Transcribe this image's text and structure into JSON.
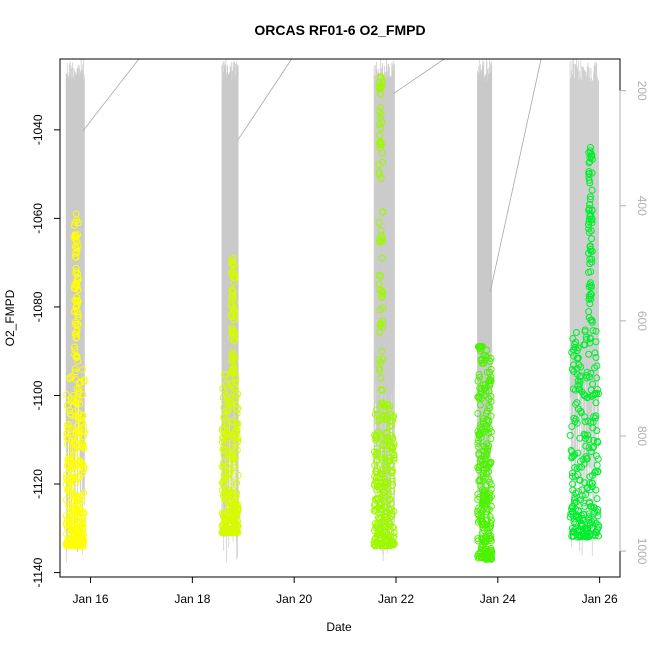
{
  "chart_data": {
    "type": "scatter",
    "title": "ORCAS RF01-6 O2_FMPD",
    "xlabel": "Date",
    "ylabel": "O2_FMPD",
    "x_ticks": [
      "Jan 16",
      "Jan 18",
      "Jan 20",
      "Jan 22",
      "Jan 24",
      "Jan 26"
    ],
    "x_tick_days": [
      16,
      18,
      20,
      22,
      24,
      26
    ],
    "xlim": [
      15.4,
      26.4
    ],
    "ylim": [
      -1141,
      -1024
    ],
    "y_ticks": [
      -1140,
      -1120,
      -1100,
      -1080,
      -1060,
      -1040
    ],
    "y2_ticks": [
      200,
      400,
      600,
      800,
      1000
    ],
    "y2lim": [
      1045,
      145
    ],
    "series": [
      {
        "color": "#ffff00",
        "flights": [
          {
            "start": 15.52,
            "end": 15.88,
            "min": -1134,
            "max": -1094,
            "peak_day": 15.72,
            "peak": -1059
          }
        ]
      },
      {
        "color": "#d6fb00",
        "flights": [
          {
            "start": 18.58,
            "end": 18.9,
            "min": -1131,
            "max": -1095,
            "peak_day": 18.8,
            "peak": -1069
          }
        ]
      },
      {
        "color": "#9ef800",
        "flights": [
          {
            "start": 21.57,
            "end": 21.97,
            "min": -1134,
            "max": -1102,
            "peak_day": 21.7,
            "peak": -1028
          }
        ]
      },
      {
        "color": "#4cf300",
        "flights": [
          {
            "start": 23.6,
            "end": 23.88,
            "min": -1137,
            "max": -1089,
            "peak_day": 23.66,
            "peak": -1089
          }
        ]
      },
      {
        "color": "#00ee2c",
        "flights": [
          {
            "start": 25.42,
            "end": 25.98,
            "min": -1132,
            "max": -1085,
            "peak_day": 25.82,
            "peak": -1044
          }
        ]
      }
    ],
    "altitude_trace": {
      "color": "#c8c8c8",
      "segments": [
        {
          "x0": 15.85,
          "alt0": 270,
          "x1": 16.95,
          "alt1": 145
        },
        {
          "x0": 18.9,
          "alt0": 285,
          "x1": 19.95,
          "alt1": 145
        },
        {
          "x0": 21.95,
          "alt0": 205,
          "x1": 22.95,
          "alt1": 145
        },
        {
          "x0": 23.85,
          "alt0": 550,
          "x1": 24.85,
          "alt1": 145
        }
      ]
    },
    "grid": false,
    "legend": "none"
  }
}
